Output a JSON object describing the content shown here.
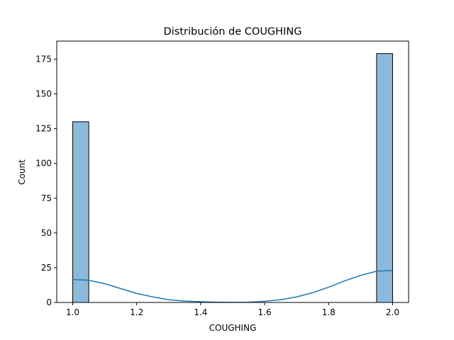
{
  "chart_data": {
    "type": "bar",
    "title": "Distribución de COUGHING",
    "xlabel": "COUGHING",
    "ylabel": "Count",
    "xlim": [
      0.95,
      2.05
    ],
    "ylim": [
      0,
      188
    ],
    "x_ticks": [
      1.0,
      1.2,
      1.4,
      1.6,
      1.8,
      2.0
    ],
    "x_tick_labels": [
      "1.0",
      "1.2",
      "1.4",
      "1.6",
      "1.8",
      "2.0"
    ],
    "y_ticks": [
      0,
      25,
      50,
      75,
      100,
      125,
      150,
      175
    ],
    "y_tick_labels": [
      "0",
      "25",
      "50",
      "75",
      "100",
      "125",
      "150",
      "175"
    ],
    "bins": [
      {
        "x_start": 1.0,
        "x_end": 1.05,
        "count": 130
      },
      {
        "x_start": 1.95,
        "x_end": 2.0,
        "count": 179
      }
    ],
    "kde_curve": {
      "x": [
        1.0,
        1.05,
        1.1,
        1.15,
        1.2,
        1.25,
        1.3,
        1.35,
        1.4,
        1.45,
        1.5,
        1.55,
        1.6,
        1.65,
        1.7,
        1.75,
        1.8,
        1.85,
        1.9,
        1.95,
        2.0
      ],
      "y": [
        16.5,
        16,
        13.5,
        10,
        6.5,
        4,
        2,
        1,
        0.5,
        0.2,
        0.1,
        0.2,
        0.8,
        2,
        4,
        7,
        11,
        15.5,
        19.5,
        22.5,
        23
      ]
    },
    "grid": false,
    "colors": {
      "bar_fill": "#8db9da",
      "bar_edge": "#000000",
      "kde_line": "#1f77b4"
    }
  }
}
